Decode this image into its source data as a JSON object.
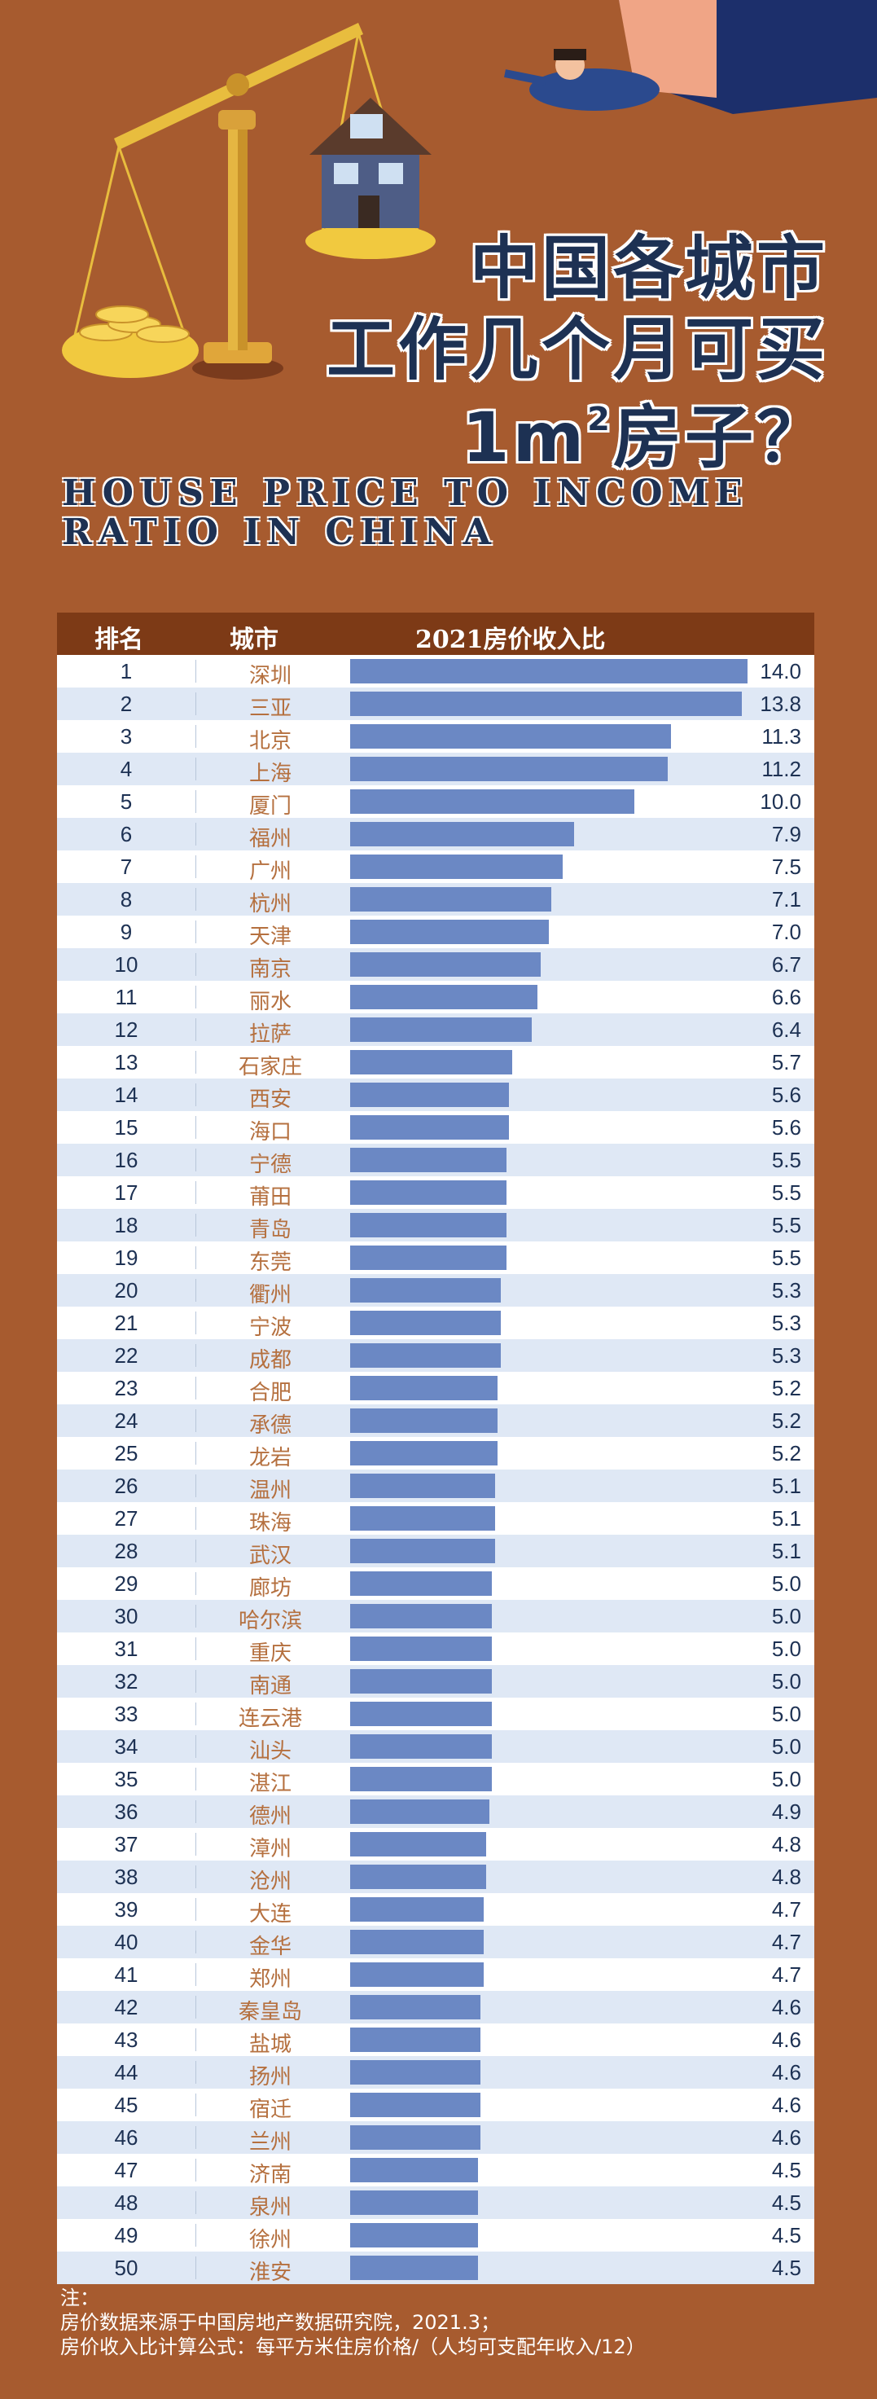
{
  "hero": {
    "title_lines": [
      "中国各城市",
      "工作几个月可买",
      "1m",
      "房子？"
    ],
    "title_sup": "2",
    "subtitle": "HOUSE PRICE TO INCOME RATIO IN CHINA"
  },
  "colors": {
    "background": "#a75b2f",
    "header_bg": "#7d3a16",
    "bar": "#6b88c4",
    "row_light": "#ffffff",
    "row_alt": "#dfe8f5",
    "rank_text": "#1d3153",
    "city_text": "#b5703f"
  },
  "chart_data": {
    "type": "bar",
    "title": "2021房价收入比",
    "columns": [
      "排名",
      "城市",
      "2021房价收入比"
    ],
    "ranks": [
      1,
      2,
      3,
      4,
      5,
      6,
      7,
      8,
      9,
      10,
      11,
      12,
      13,
      14,
      15,
      16,
      17,
      18,
      19,
      20,
      21,
      22,
      23,
      24,
      25,
      26,
      27,
      28,
      29,
      30,
      31,
      32,
      33,
      34,
      35,
      36,
      37,
      38,
      39,
      40,
      41,
      42,
      43,
      44,
      45,
      46,
      47,
      48,
      49,
      50
    ],
    "categories": [
      "深圳",
      "三亚",
      "北京",
      "上海",
      "厦门",
      "福州",
      "广州",
      "杭州",
      "天津",
      "南京",
      "丽水",
      "拉萨",
      "石家庄",
      "西安",
      "海口",
      "宁德",
      "莆田",
      "青岛",
      "东莞",
      "衢州",
      "宁波",
      "成都",
      "合肥",
      "承德",
      "龙岩",
      "温州",
      "珠海",
      "武汉",
      "廊坊",
      "哈尔滨",
      "重庆",
      "南通",
      "连云港",
      "汕头",
      "湛江",
      "德州",
      "漳州",
      "沧州",
      "大连",
      "金华",
      "郑州",
      "秦皇岛",
      "盐城",
      "扬州",
      "宿迁",
      "兰州",
      "济南",
      "泉州",
      "徐州",
      "淮安"
    ],
    "values": [
      14.0,
      13.8,
      11.3,
      11.2,
      10.0,
      7.9,
      7.5,
      7.1,
      7.0,
      6.7,
      6.6,
      6.4,
      5.7,
      5.6,
      5.6,
      5.5,
      5.5,
      5.5,
      5.5,
      5.3,
      5.3,
      5.3,
      5.2,
      5.2,
      5.2,
      5.1,
      5.1,
      5.1,
      5.0,
      5.0,
      5.0,
      5.0,
      5.0,
      5.0,
      5.0,
      4.9,
      4.8,
      4.8,
      4.7,
      4.7,
      4.7,
      4.6,
      4.6,
      4.6,
      4.6,
      4.6,
      4.5,
      4.5,
      4.5,
      4.5
    ],
    "value_labels": [
      "14.0",
      "13.8",
      "11.3",
      "11.2",
      "10.0",
      "7.9",
      "7.5",
      "7.1",
      "7.0",
      "6.7",
      "6.6",
      "6.4",
      "5.7",
      "5.6",
      "5.6",
      "5.5",
      "5.5",
      "5.5",
      "5.5",
      "5.3",
      "5.3",
      "5.3",
      "5.2",
      "5.2",
      "5.2",
      "5.1",
      "5.1",
      "5.1",
      "5.0",
      "5.0",
      "5.0",
      "5.0",
      "5.0",
      "5.0",
      "5.0",
      "4.9",
      "4.8",
      "4.8",
      "4.7",
      "4.7",
      "4.7",
      "4.6",
      "4.6",
      "4.6",
      "4.6",
      "4.6",
      "4.5",
      "4.5",
      "4.5",
      "4.5"
    ],
    "xlim": [
      0,
      14
    ]
  },
  "footer": {
    "note_label": "注：",
    "source": "房价数据来源于中国房地产数据研究院，2021.3；",
    "formula": "房价收入比计算公式：每平方米住房价格/（人均可支配年收入/12）"
  }
}
